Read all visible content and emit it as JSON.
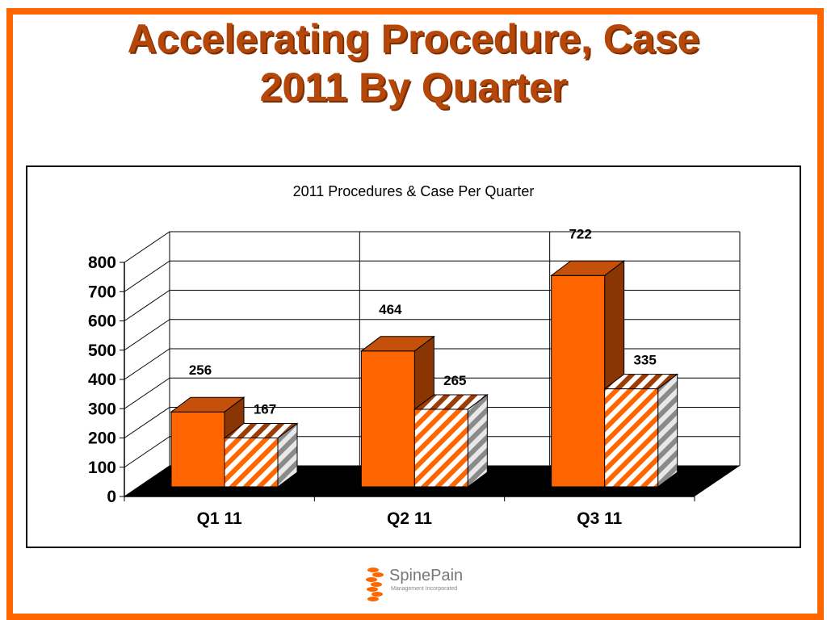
{
  "slide": {
    "title_line1": "Accelerating Procedure, Case",
    "title_line2": "2011 By Quarter"
  },
  "chart_data": {
    "type": "bar",
    "title": "2011 Procedures & Case Per Quarter",
    "categories": [
      "Q1 11",
      "Q2 11",
      "Q3 11"
    ],
    "series": [
      {
        "values": [
          256,
          464,
          722
        ],
        "color": "#ff6600",
        "pattern": "solid"
      },
      {
        "values": [
          167,
          265,
          335
        ],
        "color": "#ff6600",
        "pattern": "diagonal-stripes"
      }
    ],
    "ylim": [
      0,
      800
    ],
    "yticks": [
      0,
      100,
      200,
      300,
      400,
      500,
      600,
      700,
      800
    ],
    "grid": true,
    "legend": "none",
    "floor_color": "#000000",
    "three_d": true
  },
  "logo": {
    "name": "SpinePain",
    "subtitle": "Management Incorporated",
    "icon": "spine-vertebrae-icon",
    "color": "#ff6600"
  }
}
